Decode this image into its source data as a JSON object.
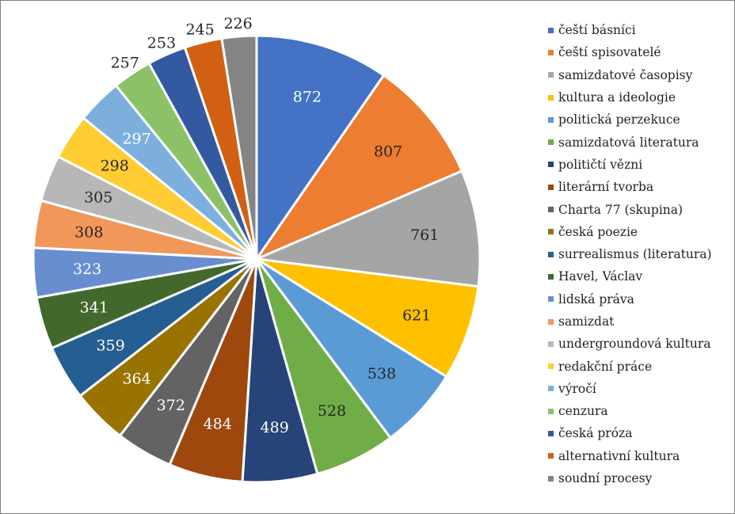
{
  "chart_data": {
    "type": "pie",
    "title": "",
    "legend_position": "right",
    "series": [
      {
        "name": "",
        "values": [
          872,
          807,
          761,
          621,
          538,
          528,
          489,
          484,
          372,
          364,
          359,
          341,
          323,
          308,
          305,
          298,
          297,
          257,
          253,
          245,
          226
        ]
      }
    ],
    "categories": [
      "čeští básníci",
      "čeští spisovatelé",
      "samizdatové časopisy",
      "kultura a ideologie",
      "politická perzekuce",
      "samizdatová literatura",
      "političtí vězni",
      "literární tvorba",
      "Charta 77 (skupina)",
      "česká poezie",
      "surrealismus (literatura)",
      "Havel, Václav",
      "lidská práva",
      "samizdat",
      "undergroundová kultura",
      "redakční práce",
      "výročí",
      "cenzura",
      "česká próza",
      "alternativní kultura",
      "soudní procesy"
    ],
    "values": [
      872,
      807,
      761,
      621,
      538,
      528,
      489,
      484,
      372,
      364,
      359,
      341,
      323,
      308,
      305,
      298,
      297,
      257,
      253,
      245,
      226
    ],
    "colors": [
      "#4472c4",
      "#ed7d31",
      "#a5a5a5",
      "#ffc000",
      "#5b9bd5",
      "#70ad47",
      "#264478",
      "#9e480e",
      "#636363",
      "#997300",
      "#255e91",
      "#43682b",
      "#698ed0",
      "#f1975a",
      "#b7b7b7",
      "#ffcd33",
      "#7cafdd",
      "#8cc168",
      "#335aa1",
      "#d26012",
      "#848484"
    ],
    "label_colors": [
      "#ffffff",
      "#262626",
      "#262626",
      "#262626",
      "#262626",
      "#262626",
      "#ffffff",
      "#ffffff",
      "#ffffff",
      "#ffffff",
      "#ffffff",
      "#ffffff",
      "#ffffff",
      "#262626",
      "#262626",
      "#262626",
      "#ffffff",
      "#262626",
      "#262626",
      "#262626",
      "#262626"
    ],
    "outside_labels": [
      false,
      false,
      false,
      false,
      false,
      false,
      false,
      false,
      false,
      false,
      false,
      false,
      false,
      false,
      false,
      false,
      false,
      true,
      true,
      true,
      true
    ]
  }
}
